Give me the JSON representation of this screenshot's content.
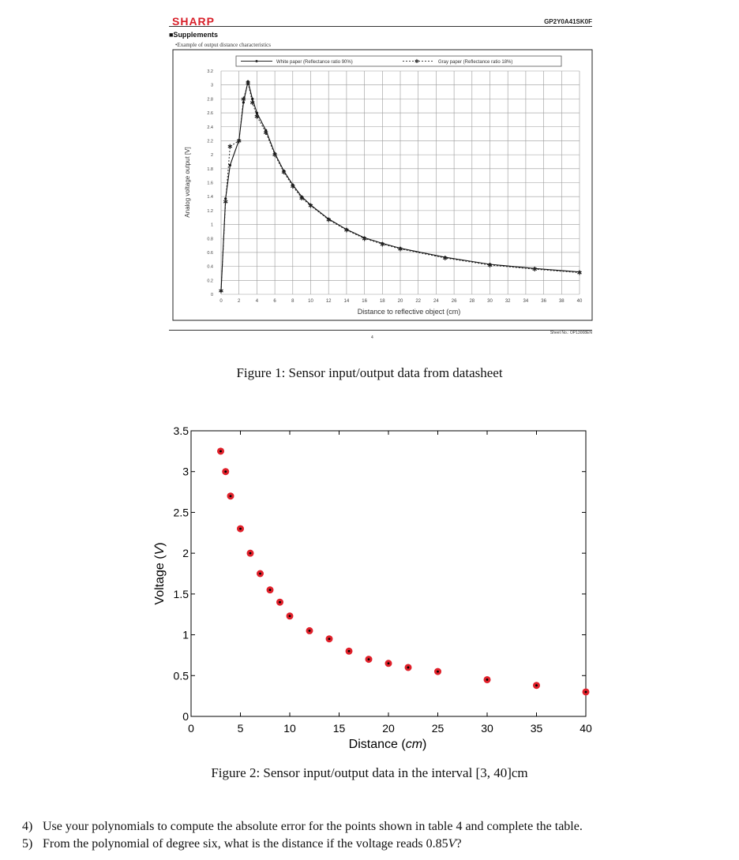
{
  "datasheet": {
    "brand": "SHARP",
    "model": "GP2Y0A41SK0F",
    "section": "■Supplements",
    "example": "•Example of output distance characteristics",
    "sheet_no": "Sheet No.: OP13008EN",
    "page": "4",
    "legend_white": "White paper (Reflectance ratio 90%)",
    "legend_gray": "Gray paper (Reflectance ratio 18%)"
  },
  "figure1": {
    "caption": "Figure 1: Sensor input/output data from datasheet"
  },
  "figure2": {
    "caption": "Figure 2: Sensor input/output data in the interval [3, 40]cm"
  },
  "questions": [
    {
      "num": "4)",
      "text": "Use your polynomials to compute the absolute error for the points shown in table 4 and complete the table."
    },
    {
      "num": "5)",
      "text": "From the polynomial of degree six, what is the distance if the voltage reads 0.85V?"
    }
  ],
  "chart_data": [
    {
      "type": "line",
      "xlabel": "Distance to reflective object (cm)",
      "ylabel": "Analog voltage output [V]",
      "xlim": [
        0,
        40
      ],
      "ylim": [
        0,
        3.2
      ],
      "xticks": [
        "0",
        "2",
        "4",
        "6",
        "8",
        "10",
        "12",
        "14",
        "16",
        "18",
        "20",
        "22",
        "24",
        "26",
        "28",
        "30",
        "32",
        "34",
        "36",
        "38",
        "40"
      ],
      "yticks": [
        "0",
        "0.2",
        "0.4",
        "0.6",
        "0.8",
        "1",
        "1.2",
        "1.4",
        "1.6",
        "1.8",
        "2",
        "2.2",
        "2.4",
        "2.6",
        "2.8",
        "3",
        "3.2"
      ],
      "grid": true,
      "legend": "top",
      "series": [
        {
          "name": "White paper (Reflectance ratio 90%)",
          "x": [
            0,
            0.5,
            1,
            2,
            2.5,
            3,
            3.5,
            4,
            5,
            6,
            7,
            8,
            9,
            10,
            12,
            14,
            16,
            18,
            20,
            25,
            30,
            35,
            40
          ],
          "y": [
            0.05,
            1.37,
            1.85,
            2.21,
            2.75,
            3.05,
            2.8,
            2.6,
            2.35,
            2.02,
            1.77,
            1.57,
            1.4,
            1.28,
            1.08,
            0.93,
            0.81,
            0.73,
            0.66,
            0.53,
            0.43,
            0.37,
            0.32
          ]
        },
        {
          "name": "Gray paper (Reflectance ratio 18%)",
          "x": [
            0,
            0.5,
            1,
            2,
            2.5,
            3,
            3.5,
            4,
            5,
            6,
            7,
            8,
            9,
            10,
            12,
            14,
            16,
            18,
            20,
            25,
            30,
            35,
            40
          ],
          "y": [
            0.05,
            1.33,
            2.12,
            2.2,
            2.8,
            3.03,
            2.75,
            2.55,
            2.32,
            2.0,
            1.75,
            1.55,
            1.38,
            1.27,
            1.07,
            0.92,
            0.8,
            0.72,
            0.65,
            0.52,
            0.42,
            0.36,
            0.31
          ]
        }
      ]
    },
    {
      "type": "scatter",
      "xlabel": "Distance (cm)",
      "ylabel": "Voltage (V)",
      "xlim": [
        0,
        40
      ],
      "ylim": [
        0,
        3.5
      ],
      "xticks": [
        "0",
        "5",
        "10",
        "15",
        "20",
        "25",
        "30",
        "35",
        "40"
      ],
      "yticks": [
        "0",
        "0.5",
        "1",
        "1.5",
        "2",
        "2.5",
        "3",
        "3.5"
      ],
      "grid": false,
      "points": {
        "x": [
          3,
          3.5,
          4,
          5,
          6,
          7,
          8,
          9,
          10,
          12,
          14,
          16,
          18,
          20,
          22,
          25,
          30,
          35,
          40
        ],
        "y": [
          3.25,
          3.0,
          2.7,
          2.3,
          2.0,
          1.75,
          1.55,
          1.4,
          1.23,
          1.05,
          0.95,
          0.8,
          0.7,
          0.65,
          0.6,
          0.55,
          0.45,
          0.38,
          0.3
        ]
      },
      "marker_color": "#e0202a"
    }
  ]
}
